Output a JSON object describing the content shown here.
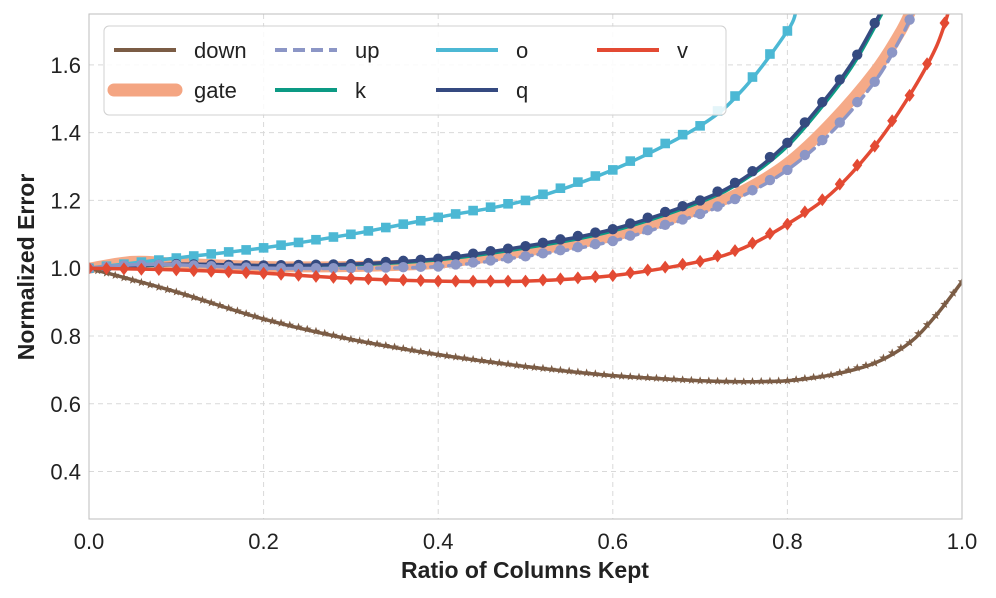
{
  "chart_data": {
    "type": "line",
    "xlabel": "Ratio of Columns Kept",
    "ylabel": "Normalized Error",
    "xlim": [
      0.0,
      1.0
    ],
    "ylim": [
      0.26,
      1.75
    ],
    "xticks": [
      "0.0",
      "0.2",
      "0.4",
      "0.6",
      "0.8",
      "1.0"
    ],
    "yticks": [
      "0.4",
      "0.6",
      "0.8",
      "1.0",
      "1.2",
      "1.4",
      "1.6"
    ],
    "grid": true,
    "legend_position": "top-left",
    "legend_columns": 4,
    "series": [
      {
        "name": "down",
        "color": "#7b5c45",
        "style": "solid",
        "marker": "star",
        "x": [
          0.0,
          0.1,
          0.2,
          0.3,
          0.4,
          0.5,
          0.6,
          0.7,
          0.75,
          0.8,
          0.85,
          0.9,
          0.94,
          0.97,
          1.0
        ],
        "y": [
          1.0,
          0.93,
          0.85,
          0.79,
          0.745,
          0.71,
          0.683,
          0.668,
          0.665,
          0.668,
          0.685,
          0.72,
          0.78,
          0.86,
          0.96
        ]
      },
      {
        "name": "gate",
        "color": "#f4a582",
        "style": "thick",
        "marker": "none",
        "x": [
          0.0,
          0.05,
          0.1,
          0.2,
          0.3,
          0.4,
          0.5,
          0.6,
          0.7,
          0.75,
          0.8,
          0.85,
          0.9,
          0.93,
          0.945
        ],
        "y": [
          1.0,
          1.02,
          1.015,
          1.005,
          1.005,
          1.015,
          1.05,
          1.095,
          1.175,
          1.23,
          1.31,
          1.43,
          1.58,
          1.7,
          1.78
        ]
      },
      {
        "name": "up",
        "color": "#8c96c6",
        "style": "dashed",
        "marker": "hexagon",
        "x": [
          0.0,
          0.05,
          0.1,
          0.2,
          0.3,
          0.4,
          0.5,
          0.6,
          0.7,
          0.75,
          0.8,
          0.85,
          0.9,
          0.93,
          0.945
        ],
        "y": [
          1.0,
          1.01,
          1.01,
          1.0,
          1.0,
          1.005,
          1.035,
          1.08,
          1.16,
          1.215,
          1.29,
          1.4,
          1.55,
          1.68,
          1.76
        ]
      },
      {
        "name": "o",
        "color": "#4cb8d4",
        "style": "solid",
        "marker": "square",
        "x": [
          0.0,
          0.1,
          0.2,
          0.3,
          0.4,
          0.5,
          0.6,
          0.7,
          0.75,
          0.8,
          0.81
        ],
        "y": [
          1.0,
          1.03,
          1.06,
          1.1,
          1.15,
          1.2,
          1.29,
          1.42,
          1.53,
          1.7,
          1.76
        ]
      },
      {
        "name": "k",
        "color": "#0c9a84",
        "style": "solid",
        "marker": "none",
        "x": [
          0.0,
          0.1,
          0.2,
          0.3,
          0.4,
          0.5,
          0.6,
          0.7,
          0.75,
          0.8,
          0.85,
          0.88,
          0.91
        ],
        "y": [
          1.0,
          1.01,
          1.005,
          1.01,
          1.025,
          1.06,
          1.11,
          1.195,
          1.26,
          1.36,
          1.51,
          1.62,
          1.76
        ]
      },
      {
        "name": "q",
        "color": "#354a80",
        "style": "solid",
        "marker": "circle",
        "x": [
          0.0,
          0.1,
          0.2,
          0.3,
          0.4,
          0.5,
          0.6,
          0.7,
          0.75,
          0.8,
          0.85,
          0.88,
          0.91
        ],
        "y": [
          1.0,
          1.012,
          1.008,
          1.012,
          1.028,
          1.065,
          1.115,
          1.2,
          1.265,
          1.37,
          1.52,
          1.63,
          1.77
        ]
      },
      {
        "name": "v",
        "color": "#e34a33",
        "style": "solid",
        "marker": "diamond",
        "x": [
          0.0,
          0.1,
          0.2,
          0.3,
          0.4,
          0.5,
          0.6,
          0.7,
          0.75,
          0.8,
          0.85,
          0.9,
          0.94,
          0.97,
          0.985
        ],
        "y": [
          1.0,
          0.995,
          0.985,
          0.97,
          0.962,
          0.962,
          0.978,
          1.02,
          1.06,
          1.13,
          1.22,
          1.36,
          1.51,
          1.65,
          1.76
        ]
      }
    ]
  }
}
